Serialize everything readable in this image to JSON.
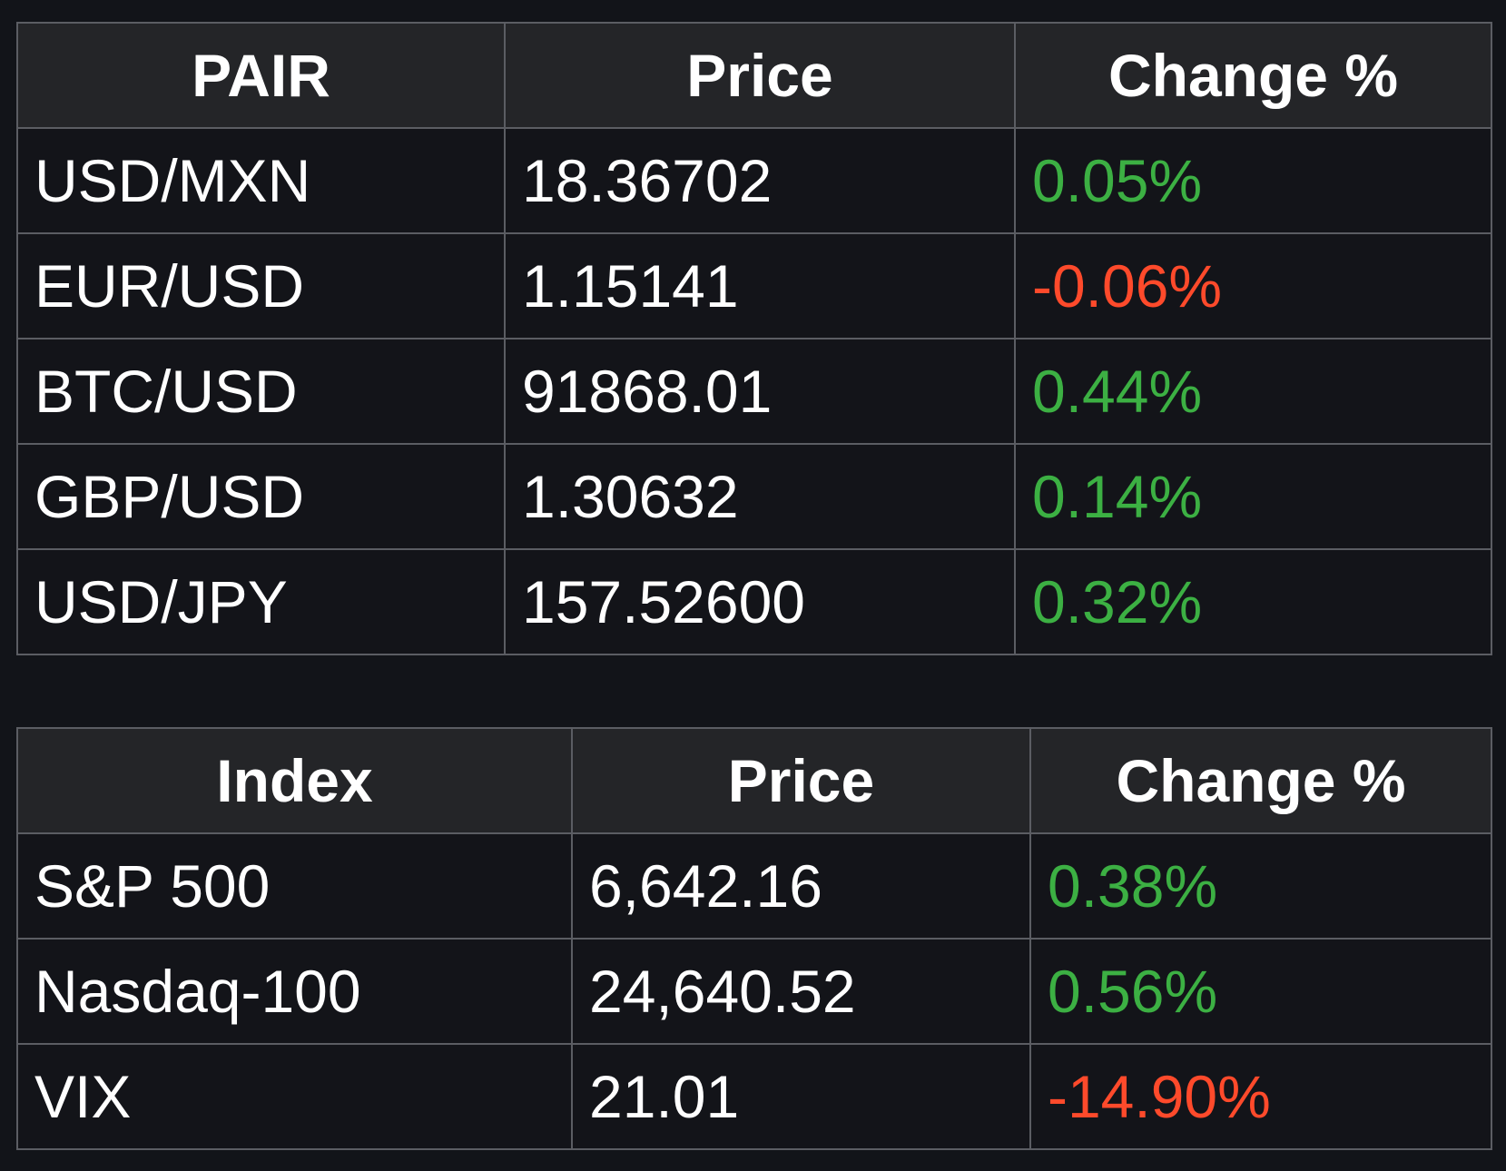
{
  "colors": {
    "background": "#121419",
    "header_bg": "#242528",
    "border": "#5b5d63",
    "positive": "#3cb043",
    "negative": "#ff4a2b",
    "text": "#ffffff"
  },
  "fx_table": {
    "headers": [
      "PAIR",
      "Price",
      "Change %"
    ],
    "rows": [
      {
        "name": "USD/MXN",
        "price": "18.36702",
        "change": "0.05%",
        "direction": "up"
      },
      {
        "name": "EUR/USD",
        "price": "1.15141",
        "change": "-0.06%",
        "direction": "down"
      },
      {
        "name": "BTC/USD",
        "price": "91868.01",
        "change": "0.44%",
        "direction": "up"
      },
      {
        "name": "GBP/USD",
        "price": "1.30632",
        "change": "0.14%",
        "direction": "up"
      },
      {
        "name": "USD/JPY",
        "price": "157.52600",
        "change": "0.32%",
        "direction": "up"
      }
    ]
  },
  "index_table": {
    "headers": [
      "Index",
      "Price",
      "Change %"
    ],
    "rows": [
      {
        "name": "S&P 500",
        "price": "6,642.16",
        "change": "0.38%",
        "direction": "up"
      },
      {
        "name": "Nasdaq-100",
        "price": "24,640.52",
        "change": "0.56%",
        "direction": "up"
      },
      {
        "name": "VIX",
        "price": "21.01",
        "change": "-14.90%",
        "direction": "down"
      }
    ]
  }
}
